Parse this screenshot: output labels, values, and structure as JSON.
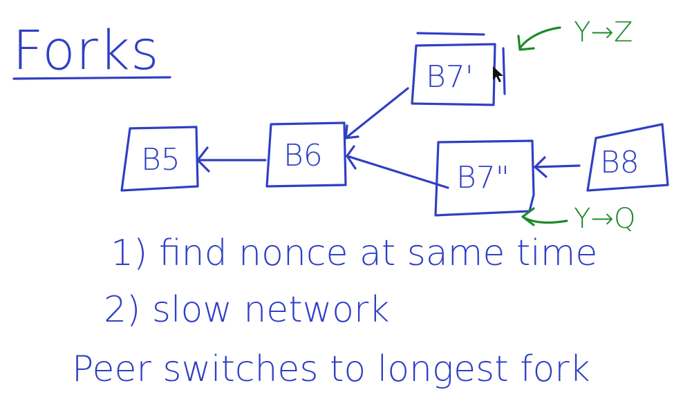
{
  "title": "Forks",
  "blocks": {
    "b5": "B5",
    "b6": "B6",
    "b7_top": "B7'",
    "b7_bottom": "B7\"",
    "b8": "B8"
  },
  "annotations": {
    "top_branch": "Y→Z",
    "bottom_branch": "Y→Q"
  },
  "notes": {
    "reason_1": "1) find nonce at same time",
    "reason_2": "2) slow network",
    "conclusion": "Peer switches to longest fork"
  },
  "colors": {
    "blue_ink": "#2f3fc4",
    "green_ink": "#1c8a2a"
  }
}
